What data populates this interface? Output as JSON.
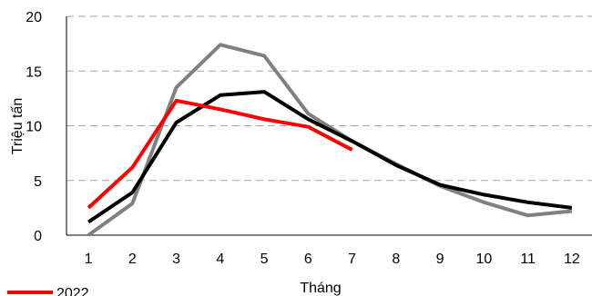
{
  "chart_data": {
    "type": "line",
    "title": "",
    "xlabel": "Tháng",
    "ylabel": "Triệu tấn",
    "categories": [
      "1",
      "2",
      "3",
      "4",
      "5",
      "6",
      "7",
      "8",
      "9",
      "10",
      "11",
      "12"
    ],
    "ylim": [
      0,
      20
    ],
    "yticks": [
      0,
      5,
      10,
      15,
      20
    ],
    "grid": "horizontal dashed",
    "series": [
      {
        "name": "2022",
        "color": "#ff0000",
        "values": [
          2.5,
          6.2,
          12.3,
          11.5,
          10.6,
          9.9,
          7.8,
          null,
          null,
          null,
          null,
          null
        ]
      },
      {
        "name": "",
        "color": "#000000",
        "values": [
          1.2,
          3.9,
          10.3,
          12.8,
          13.1,
          10.6,
          8.6,
          6.4,
          4.6,
          3.7,
          3.0,
          2.5
        ]
      },
      {
        "name": "",
        "color": "#808080",
        "values": [
          0.0,
          2.9,
          13.5,
          17.4,
          16.4,
          11.1,
          8.6,
          6.5,
          4.5,
          3.0,
          1.8,
          2.2
        ]
      }
    ],
    "legend": {
      "position": "bottom-left",
      "entries": [
        {
          "label": "2022",
          "color": "#ff0000"
        }
      ]
    }
  }
}
